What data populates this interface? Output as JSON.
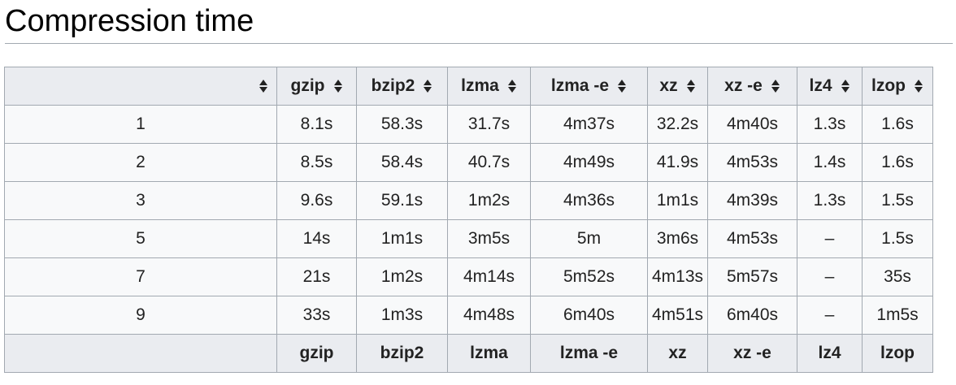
{
  "title": "Compression time",
  "table": {
    "headers": [
      "",
      "gzip",
      "bzip2",
      "lzma",
      "lzma -e",
      "xz",
      "xz -e",
      "lz4",
      "lzop"
    ],
    "rows": [
      [
        "1",
        "8.1s",
        "58.3s",
        "31.7s",
        "4m37s",
        "32.2s",
        "4m40s",
        "1.3s",
        "1.6s"
      ],
      [
        "2",
        "8.5s",
        "58.4s",
        "40.7s",
        "4m49s",
        "41.9s",
        "4m53s",
        "1.4s",
        "1.6s"
      ],
      [
        "3",
        "9.6s",
        "59.1s",
        "1m2s",
        "4m36s",
        "1m1s",
        "4m39s",
        "1.3s",
        "1.5s"
      ],
      [
        "5",
        "14s",
        "1m1s",
        "3m5s",
        "5m",
        "3m6s",
        "4m53s",
        "–",
        "1.5s"
      ],
      [
        "7",
        "21s",
        "1m2s",
        "4m14s",
        "5m52s",
        "4m13s",
        "5m57s",
        "–",
        "35s"
      ],
      [
        "9",
        "33s",
        "1m3s",
        "4m48s",
        "6m40s",
        "4m51s",
        "6m40s",
        "–",
        "1m5s"
      ]
    ],
    "footer": [
      "",
      "gzip",
      "bzip2",
      "lzma",
      "lzma -e",
      "xz",
      "xz -e",
      "lz4",
      "lzop"
    ]
  }
}
